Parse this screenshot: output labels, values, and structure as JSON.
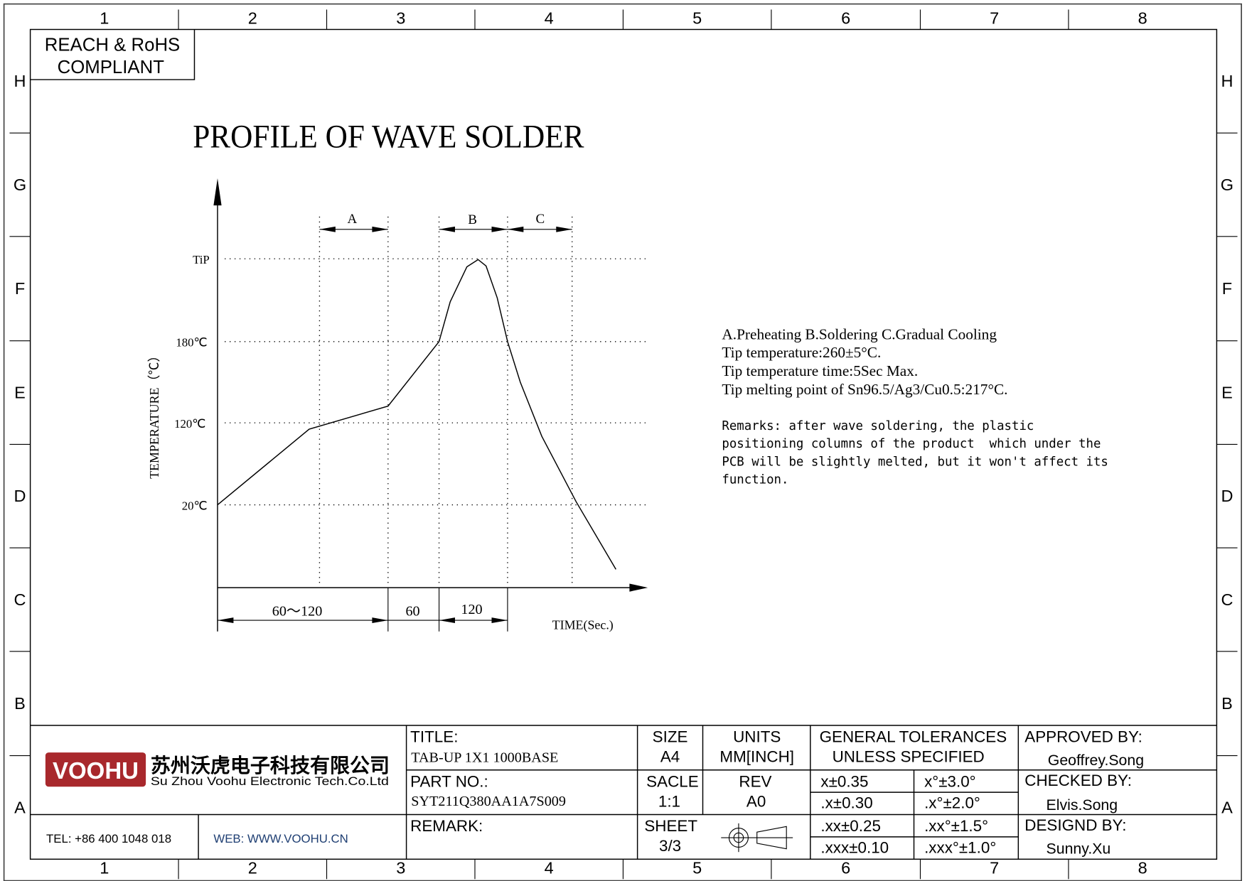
{
  "frame": {
    "columns": [
      "1",
      "2",
      "3",
      "4",
      "5",
      "6",
      "7",
      "8"
    ],
    "rows": [
      "H",
      "G",
      "F",
      "E",
      "D",
      "C",
      "B",
      "A"
    ]
  },
  "compliance": {
    "line1": "REACH & RoHS",
    "line2": "COMPLIANT"
  },
  "drawing_title": "PROFILE OF WAVE SOLDER",
  "chart_data": {
    "type": "line",
    "title": "PROFILE OF WAVE SOLDER",
    "ylabel": "TEMPERATURE（℃）",
    "xlabel": "TIME(Sec.)",
    "y_ticks": [
      "TiP",
      "180℃",
      "120℃",
      "20℃"
    ],
    "zones": [
      {
        "label": "A"
      },
      {
        "label": "B"
      },
      {
        "label": "C"
      }
    ],
    "durations": [
      "60～120",
      "60",
      "120"
    ],
    "grid": "dotted"
  },
  "notes": {
    "lines": [
      "A.Preheating  B.Soldering  C.Gradual Cooling",
      "Tip temperature:260±5°C.",
      "Tip temperature time:5Sec Max.",
      "Tip melting point of Sn96.5/Ag3/Cu0.5:217°C."
    ],
    "remarks": [
      "Remarks: after wave soldering, the plastic",
      "positioning columns of the product  which under the",
      "PCB will be slightly melted, but it won't affect its",
      "function."
    ]
  },
  "title_block": {
    "logo_text": "VOOHU",
    "logo_color": "#a8282c",
    "company_cn": "苏州沃虎电子科技有限公司",
    "company_en": "Su Zhou Voohu Electronic Tech.Co.Ltd",
    "tel": "TEL: +86 400 1048 018",
    "web": "WEB: WWW.VOOHU.CN",
    "web_color": "#1f3f73",
    "title_label": "TITLE:",
    "title_value": "TAB-UP 1X1 1000BASE",
    "part_label": "PART NO.:",
    "part_value": "SYT211Q380AA1A7S009",
    "remark_label": "REMARK:",
    "size_label": "SIZE",
    "size_value": "A4",
    "units_label": "UNITS",
    "units_value": "MM[INCH]",
    "scale_label": "SACLE",
    "scale_value": "1:1",
    "rev_label": "REV",
    "rev_value": "A0",
    "sheet_label": "SHEET",
    "sheet_value": "3/3",
    "projection_icon": "third-angle-projection-icon",
    "tol_label1": "GENERAL TOLERANCES",
    "tol_label2": "UNLESS SPECIFIED",
    "tolerances": [
      [
        "x±0.35",
        "x°±3.0°"
      ],
      [
        ".x±0.30",
        ".x°±2.0°"
      ],
      [
        ".xx±0.25",
        ".xx°±1.5°"
      ],
      [
        ".xxx±0.10",
        ".xxx°±1.0°"
      ]
    ],
    "approved_label": "APPROVED BY:",
    "approved_value": "Geoffrey.Song",
    "checked_label": "CHECKED BY:",
    "checked_value": "Elvis.Song",
    "designed_label": "DESIGND BY:",
    "designed_value": "Sunny.Xu"
  }
}
